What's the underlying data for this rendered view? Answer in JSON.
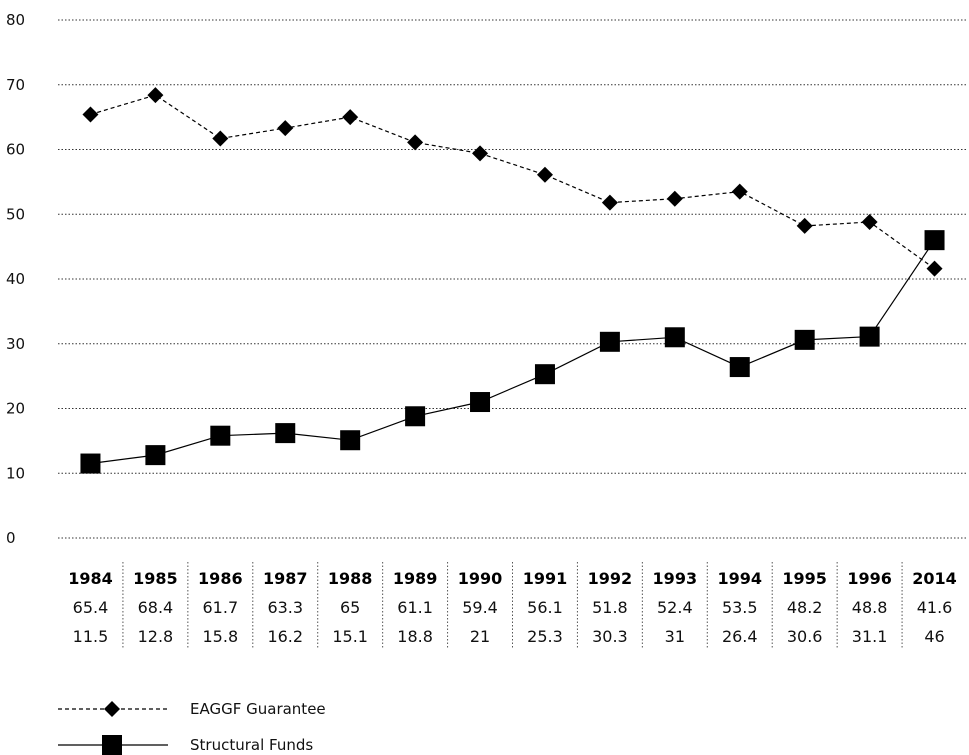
{
  "chart_data": {
    "type": "line",
    "title": "",
    "xlabel": "",
    "ylabel": "",
    "ylim": [
      0,
      80
    ],
    "yticks": [
      0,
      10,
      20,
      30,
      40,
      50,
      60,
      70,
      80
    ],
    "grid": true,
    "legend_position": "bottom-left",
    "categories": [
      "1984",
      "1985",
      "1986",
      "1987",
      "1988",
      "1989",
      "1990",
      "1991",
      "1992",
      "1993",
      "1994",
      "1995",
      "1996",
      "2014"
    ],
    "series": [
      {
        "name": "EAGGF Guarantee",
        "marker": "diamond",
        "line": "dashed",
        "color": "#000000",
        "values": [
          65.4,
          68.4,
          61.7,
          63.3,
          65,
          61.1,
          59.4,
          56.1,
          51.8,
          52.4,
          53.5,
          48.2,
          48.8,
          41.6
        ],
        "table_values": [
          "65.4",
          "68.4",
          "61.7",
          "63.3",
          "65",
          "61.1",
          "59.4",
          "56.1",
          "51.8",
          "52.4",
          "53.5",
          "48.2",
          "48.8",
          "41.6"
        ]
      },
      {
        "name": "Structural Funds",
        "marker": "square",
        "line": "solid",
        "color": "#000000",
        "values": [
          11.5,
          12.8,
          15.8,
          16.2,
          15.1,
          18.8,
          21,
          25.3,
          30.3,
          31,
          26.4,
          30.6,
          31.1,
          46
        ],
        "table_values": [
          "11.5",
          "12.8",
          "15.8",
          "16.2",
          "15.1",
          "18.8",
          "21",
          "25.3",
          "30.3",
          "31",
          "26.4",
          "30.6",
          "31.1",
          "46"
        ]
      }
    ]
  }
}
